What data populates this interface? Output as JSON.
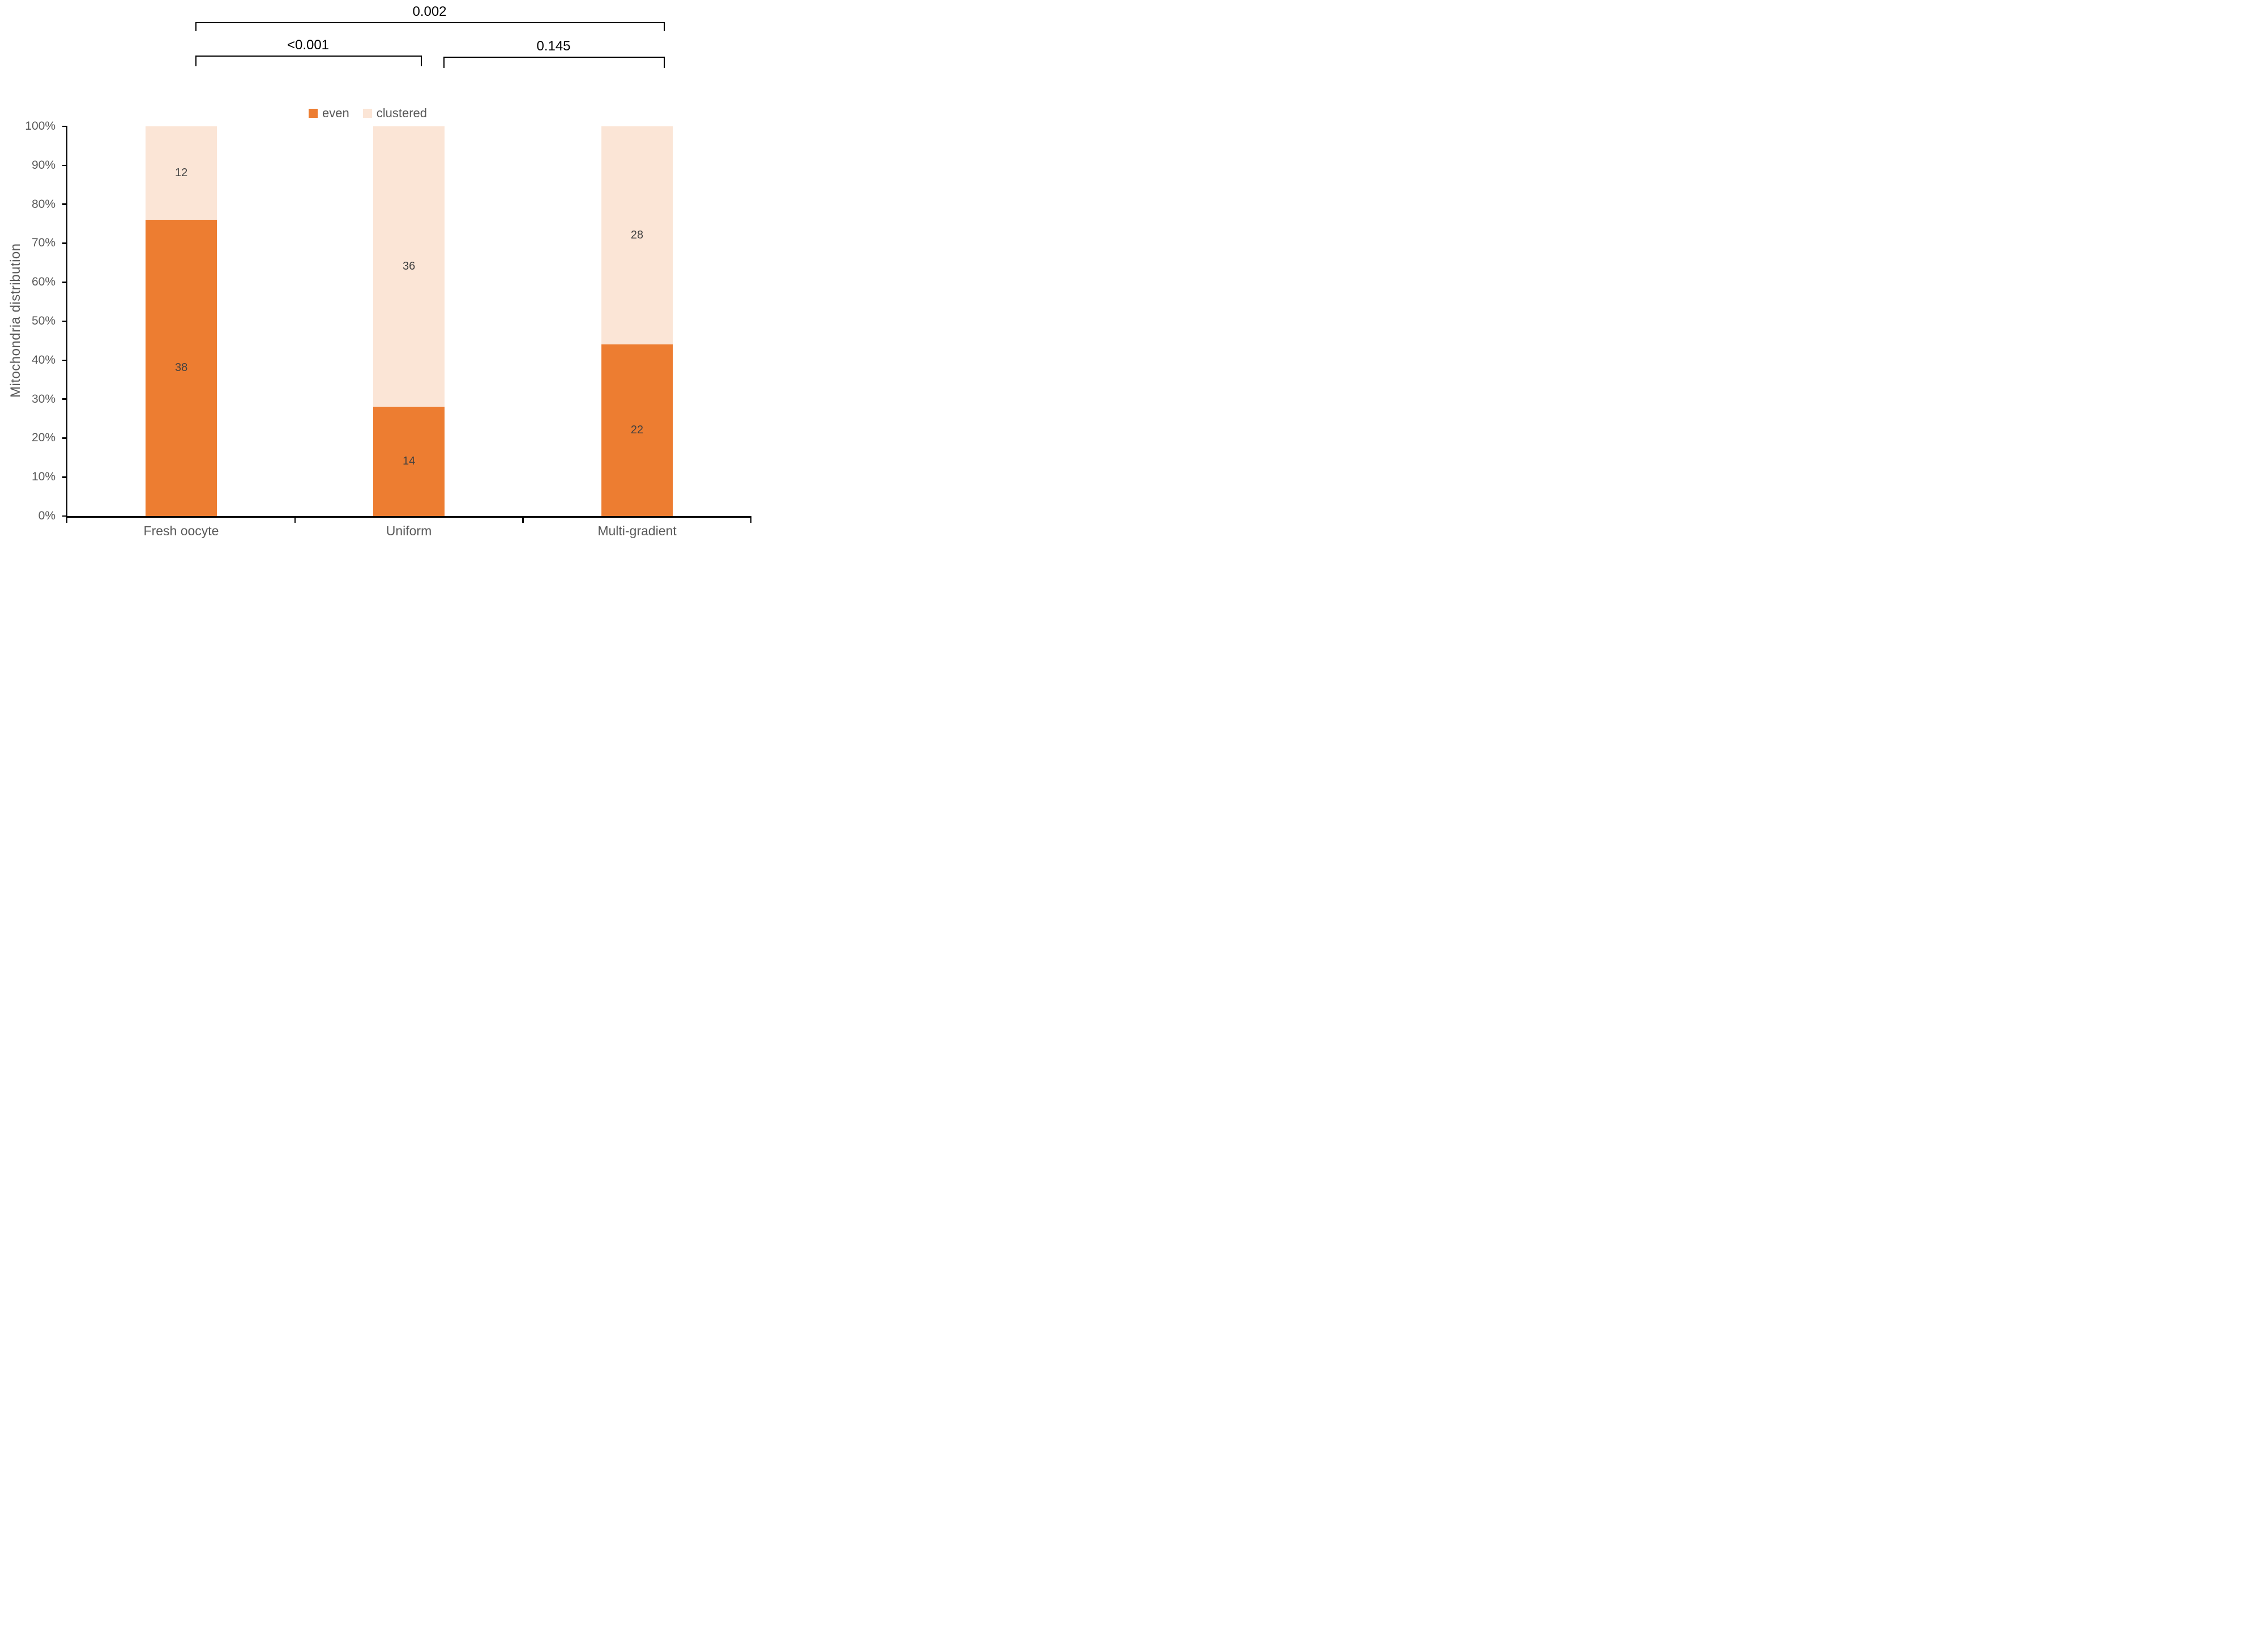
{
  "chart_data": {
    "type": "bar",
    "stacked": true,
    "percent_axis": true,
    "title": "",
    "xlabel": "",
    "ylabel": "Mitochondria distribution",
    "categories": [
      "Fresh oocyte",
      "Uniform",
      "Multi-gradient"
    ],
    "series": [
      {
        "name": "even",
        "color": "#ED7D31",
        "values": [
          38,
          14,
          22
        ]
      },
      {
        "name": "clustered",
        "color": "#FBE5D6",
        "values": [
          12,
          36,
          28
        ]
      }
    ],
    "segment_percentages": {
      "even": [
        76,
        28,
        44
      ],
      "clustered": [
        24,
        72,
        56
      ]
    },
    "y_tick_labels": [
      "0%",
      "10%",
      "20%",
      "30%",
      "40%",
      "50%",
      "60%",
      "70%",
      "80%",
      "90%",
      "100%"
    ],
    "ylim": [
      0,
      100
    ],
    "gridlines": false,
    "legend_position": "top-center",
    "annotations": {
      "comparisons": [
        {
          "label": "0.002",
          "between": [
            "Fresh oocyte",
            "Multi-gradient"
          ],
          "level": "top"
        },
        {
          "label": "<0.001",
          "between": [
            "Fresh oocyte",
            "Uniform"
          ],
          "level": "lower"
        },
        {
          "label": "0.145",
          "between": [
            "Uniform",
            "Multi-gradient"
          ],
          "level": "lower"
        }
      ]
    }
  },
  "colors": {
    "even_bar": "#ED7D31",
    "clustered_bar": "#FBE5D6",
    "axis_line": "#000000",
    "tick_label_text": "#595959",
    "data_label_text": "#404040",
    "p_value_text": "#000000",
    "background": "#FFFFFF"
  }
}
